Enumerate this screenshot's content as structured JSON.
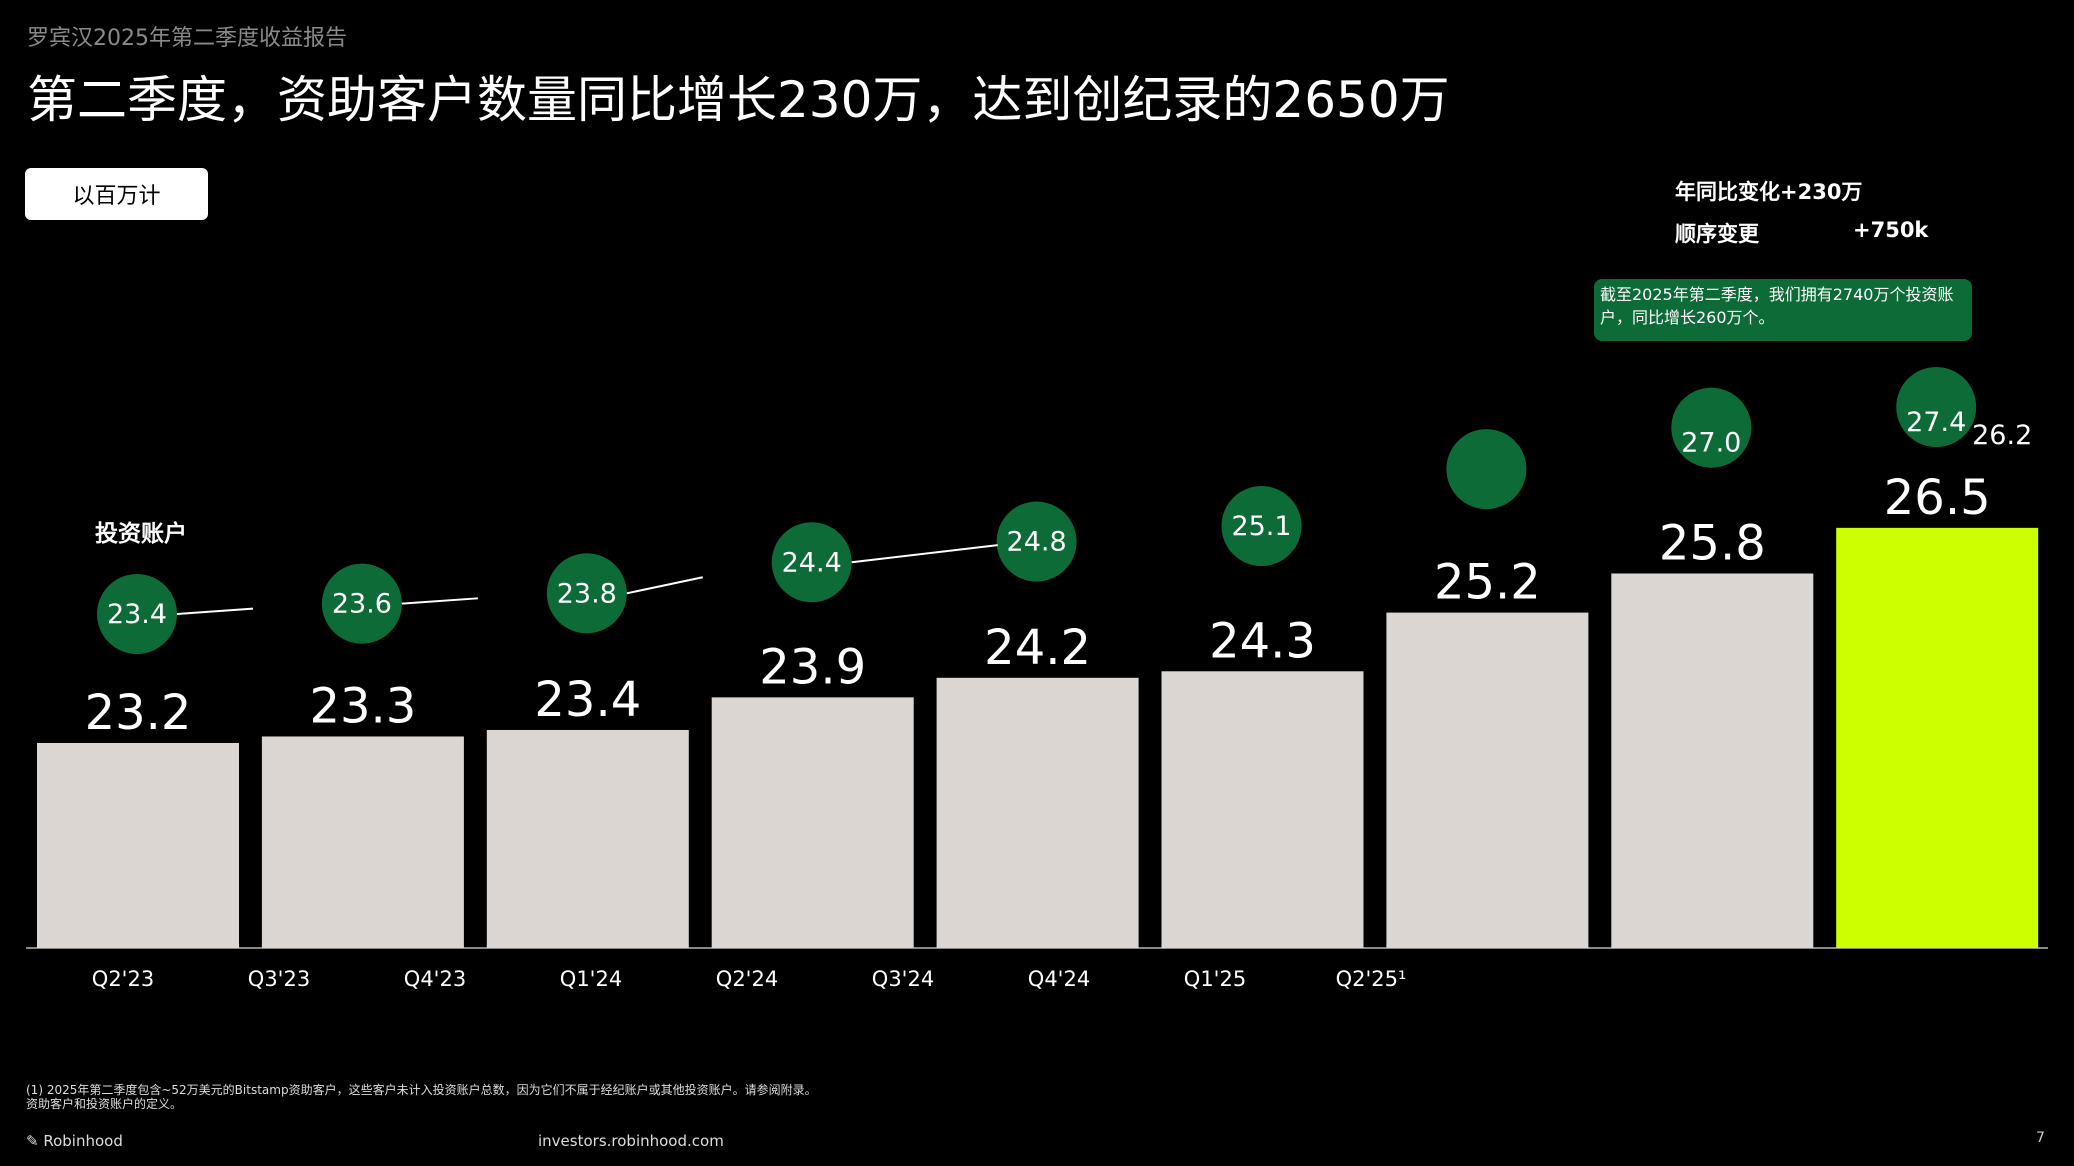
{
  "header": {
    "subtitle": "罗宾汉2025年第二季度收益报告",
    "title": "第二季度，资助客户数量同比增长230万，达到创纪录的2650万",
    "unit_button": "以百万计"
  },
  "stats": {
    "yoy": "年同比变化+230万",
    "sequential_label": "顺序变更",
    "sequential_value": "+750k"
  },
  "callout": "截至2025年第二季度，我们拥有2740万个投资账户，同比增长260万个。",
  "footer": {
    "note_line1": "(1) 2025年第二季度包含~52万美元的Bitstamp资助客户，这些客户未计入投资账户总数，因为它们不属于经纪账户或其他投资账户。请参阅附录。",
    "note_line2": "资助客户和投资账户的定义。",
    "brand": "Robinhood",
    "url": "investors.robinhood.com",
    "page": "7"
  },
  "colors": {
    "bar": "#dcd6d3",
    "highlight_bar": "#ccff00",
    "circle": "#0d6b38",
    "background": "#000000"
  },
  "chart_data": {
    "type": "bar",
    "categories": [
      "Q2'23",
      "Q3'23",
      "Q4'23",
      "Q1'24",
      "Q2'24",
      "Q3'24",
      "Q4'24",
      "Q1'25",
      "Q2'25¹"
    ],
    "series": [
      {
        "values": [
          23.2,
          23.3,
          23.4,
          23.9,
          24.2,
          24.3,
          25.2,
          25.8,
          26.5
        ]
      },
      {
        "name": "投资账户",
        "type": "circle-markers",
        "values": [
          23.4,
          23.6,
          23.8,
          24.4,
          24.8,
          25.1,
          null,
          27.0,
          27.4
        ]
      }
    ],
    "extra_label": "26.2",
    "highlight_index": 8,
    "grid": false
  }
}
